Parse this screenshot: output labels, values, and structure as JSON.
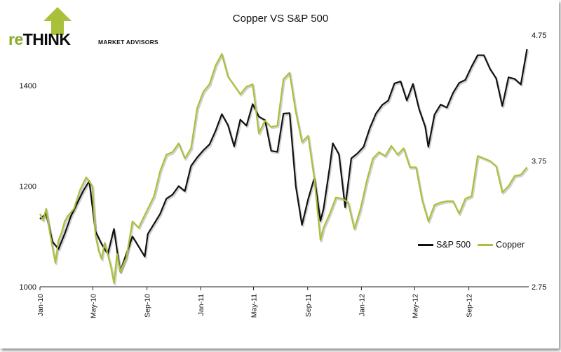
{
  "logo": {
    "brand_prefix": "re",
    "brand_main": "THINK",
    "tagline": "MARKET ADVISORS",
    "colors": {
      "prefix": "#8aab2a",
      "main": "#0d0d0d",
      "arrow": "#a9c13a"
    }
  },
  "chart_data": {
    "type": "line",
    "title": "Copper VS S&P 500",
    "x_tick_labels": [
      "Jan-10",
      "May-10",
      "Sep-10",
      "Jan-11",
      "May-11",
      "Sep-11",
      "Jan-12",
      "May-12",
      "Sep-12"
    ],
    "x_range": [
      "2010-01-01",
      "2013-01-15"
    ],
    "left_axis": {
      "ylim": [
        1000,
        1500
      ],
      "ticks": [
        1000,
        1200,
        1400
      ]
    },
    "right_axis": {
      "ylim": [
        2.75,
        4.75
      ],
      "ticks": [
        "2.75",
        "3.75",
        "4.75"
      ]
    },
    "grid": false,
    "legend_position": "right",
    "series": [
      {
        "name": "S&P 500",
        "axis": "left",
        "color": "#111111",
        "points": [
          [
            "2010-01-01",
            1135
          ],
          [
            "2010-01-15",
            1145
          ],
          [
            "2010-01-29",
            1090
          ],
          [
            "2010-02-12",
            1075
          ],
          [
            "2010-02-26",
            1105
          ],
          [
            "2010-03-12",
            1140
          ],
          [
            "2010-03-26",
            1165
          ],
          [
            "2010-04-09",
            1190
          ],
          [
            "2010-04-23",
            1210
          ],
          [
            "2010-05-07",
            1110
          ],
          [
            "2010-05-21",
            1085
          ],
          [
            "2010-06-04",
            1065
          ],
          [
            "2010-06-18",
            1115
          ],
          [
            "2010-07-02",
            1030
          ],
          [
            "2010-07-16",
            1065
          ],
          [
            "2010-07-30",
            1100
          ],
          [
            "2010-08-13",
            1080
          ],
          [
            "2010-08-27",
            1060
          ],
          [
            "2010-09-03",
            1105
          ],
          [
            "2010-09-17",
            1125
          ],
          [
            "2010-10-01",
            1145
          ],
          [
            "2010-10-15",
            1175
          ],
          [
            "2010-10-29",
            1183
          ],
          [
            "2010-11-12",
            1200
          ],
          [
            "2010-11-26",
            1190
          ],
          [
            "2010-12-10",
            1240
          ],
          [
            "2010-12-24",
            1257
          ],
          [
            "2011-01-07",
            1271
          ],
          [
            "2011-01-21",
            1283
          ],
          [
            "2011-02-04",
            1310
          ],
          [
            "2011-02-18",
            1343
          ],
          [
            "2011-03-04",
            1321
          ],
          [
            "2011-03-18",
            1279
          ],
          [
            "2011-04-01",
            1332
          ],
          [
            "2011-04-15",
            1320
          ],
          [
            "2011-04-29",
            1363
          ],
          [
            "2011-05-13",
            1338
          ],
          [
            "2011-05-27",
            1331
          ],
          [
            "2011-06-10",
            1270
          ],
          [
            "2011-06-24",
            1268
          ],
          [
            "2011-07-08",
            1344
          ],
          [
            "2011-07-22",
            1345
          ],
          [
            "2011-08-05",
            1200
          ],
          [
            "2011-08-19",
            1123
          ],
          [
            "2011-09-02",
            1174
          ],
          [
            "2011-09-16",
            1216
          ],
          [
            "2011-09-30",
            1131
          ],
          [
            "2011-10-07",
            1155
          ],
          [
            "2011-10-21",
            1238
          ],
          [
            "2011-10-28",
            1285
          ],
          [
            "2011-11-11",
            1263
          ],
          [
            "2011-11-25",
            1158
          ],
          [
            "2011-12-09",
            1255
          ],
          [
            "2011-12-23",
            1265
          ],
          [
            "2012-01-06",
            1278
          ],
          [
            "2012-01-20",
            1315
          ],
          [
            "2012-02-03",
            1344
          ],
          [
            "2012-02-17",
            1361
          ],
          [
            "2012-03-02",
            1370
          ],
          [
            "2012-03-16",
            1404
          ],
          [
            "2012-03-30",
            1408
          ],
          [
            "2012-04-13",
            1370
          ],
          [
            "2012-04-27",
            1403
          ],
          [
            "2012-05-11",
            1353
          ],
          [
            "2012-05-25",
            1318
          ],
          [
            "2012-06-01",
            1278
          ],
          [
            "2012-06-15",
            1342
          ],
          [
            "2012-06-29",
            1362
          ],
          [
            "2012-07-13",
            1356
          ],
          [
            "2012-07-27",
            1385
          ],
          [
            "2012-08-10",
            1405
          ],
          [
            "2012-08-24",
            1411
          ],
          [
            "2012-09-07",
            1437
          ],
          [
            "2012-09-21",
            1460
          ],
          [
            "2012-10-05",
            1460
          ],
          [
            "2012-10-19",
            1433
          ],
          [
            "2012-11-02",
            1414
          ],
          [
            "2012-11-16",
            1359
          ],
          [
            "2012-11-30",
            1416
          ],
          [
            "2012-12-14",
            1413
          ],
          [
            "2012-12-28",
            1402
          ],
          [
            "2013-01-11",
            1472
          ]
        ]
      },
      {
        "name": "Copper",
        "axis": "right",
        "color": "#a9c13a",
        "points": [
          [
            "2010-01-01",
            3.33
          ],
          [
            "2010-01-08",
            3.28
          ],
          [
            "2010-01-15",
            3.37
          ],
          [
            "2010-01-22",
            3.21
          ],
          [
            "2010-01-29",
            3.07
          ],
          [
            "2010-02-05",
            2.94
          ],
          [
            "2010-02-12",
            3.12
          ],
          [
            "2010-02-19",
            3.18
          ],
          [
            "2010-02-26",
            3.27
          ],
          [
            "2010-03-05",
            3.31
          ],
          [
            "2010-03-19",
            3.37
          ],
          [
            "2010-04-02",
            3.52
          ],
          [
            "2010-04-16",
            3.62
          ],
          [
            "2010-04-30",
            3.55
          ],
          [
            "2010-05-07",
            3.16
          ],
          [
            "2010-05-14",
            3.04
          ],
          [
            "2010-05-21",
            2.97
          ],
          [
            "2010-05-28",
            3.1
          ],
          [
            "2010-06-11",
            2.91
          ],
          [
            "2010-06-18",
            2.78
          ],
          [
            "2010-06-25",
            3.01
          ],
          [
            "2010-07-02",
            2.87
          ],
          [
            "2010-07-16",
            2.98
          ],
          [
            "2010-07-30",
            3.27
          ],
          [
            "2010-08-13",
            3.22
          ],
          [
            "2010-08-27",
            3.32
          ],
          [
            "2010-09-03",
            3.37
          ],
          [
            "2010-09-17",
            3.47
          ],
          [
            "2010-10-01",
            3.67
          ],
          [
            "2010-10-15",
            3.8
          ],
          [
            "2010-10-29",
            3.82
          ],
          [
            "2010-11-12",
            3.89
          ],
          [
            "2010-11-26",
            3.77
          ],
          [
            "2010-12-10",
            3.85
          ],
          [
            "2010-12-24",
            4.17
          ],
          [
            "2011-01-07",
            4.3
          ],
          [
            "2011-01-21",
            4.36
          ],
          [
            "2011-02-04",
            4.51
          ],
          [
            "2011-02-18",
            4.6
          ],
          [
            "2011-03-04",
            4.42
          ],
          [
            "2011-03-18",
            4.35
          ],
          [
            "2011-04-01",
            4.28
          ],
          [
            "2011-04-15",
            4.34
          ],
          [
            "2011-04-29",
            4.36
          ],
          [
            "2011-05-13",
            3.97
          ],
          [
            "2011-05-27",
            4.07
          ],
          [
            "2011-06-10",
            4.02
          ],
          [
            "2011-06-24",
            4.03
          ],
          [
            "2011-07-08",
            4.4
          ],
          [
            "2011-07-22",
            4.45
          ],
          [
            "2011-08-05",
            4.14
          ],
          [
            "2011-08-19",
            3.9
          ],
          [
            "2011-09-02",
            3.95
          ],
          [
            "2011-09-16",
            3.61
          ],
          [
            "2011-09-30",
            3.12
          ],
          [
            "2011-10-07",
            3.22
          ],
          [
            "2011-10-21",
            3.33
          ],
          [
            "2011-11-04",
            3.46
          ],
          [
            "2011-11-18",
            3.45
          ],
          [
            "2011-12-02",
            3.42
          ],
          [
            "2011-12-16",
            3.21
          ],
          [
            "2011-12-30",
            3.37
          ],
          [
            "2012-01-13",
            3.59
          ],
          [
            "2012-01-27",
            3.77
          ],
          [
            "2012-02-10",
            3.82
          ],
          [
            "2012-02-24",
            3.79
          ],
          [
            "2012-03-09",
            3.87
          ],
          [
            "2012-03-23",
            3.8
          ],
          [
            "2012-04-06",
            3.85
          ],
          [
            "2012-04-20",
            3.7
          ],
          [
            "2012-05-04",
            3.7
          ],
          [
            "2012-05-18",
            3.44
          ],
          [
            "2012-06-01",
            3.27
          ],
          [
            "2012-06-15",
            3.4
          ],
          [
            "2012-06-29",
            3.42
          ],
          [
            "2012-07-13",
            3.43
          ],
          [
            "2012-07-27",
            3.43
          ],
          [
            "2012-08-10",
            3.33
          ],
          [
            "2012-08-24",
            3.45
          ],
          [
            "2012-09-07",
            3.47
          ],
          [
            "2012-09-21",
            3.79
          ],
          [
            "2012-10-05",
            3.77
          ],
          [
            "2012-10-19",
            3.75
          ],
          [
            "2012-11-02",
            3.71
          ],
          [
            "2012-11-16",
            3.5
          ],
          [
            "2012-11-30",
            3.55
          ],
          [
            "2012-12-14",
            3.63
          ],
          [
            "2012-12-28",
            3.64
          ],
          [
            "2013-01-11",
            3.7
          ]
        ]
      }
    ]
  }
}
